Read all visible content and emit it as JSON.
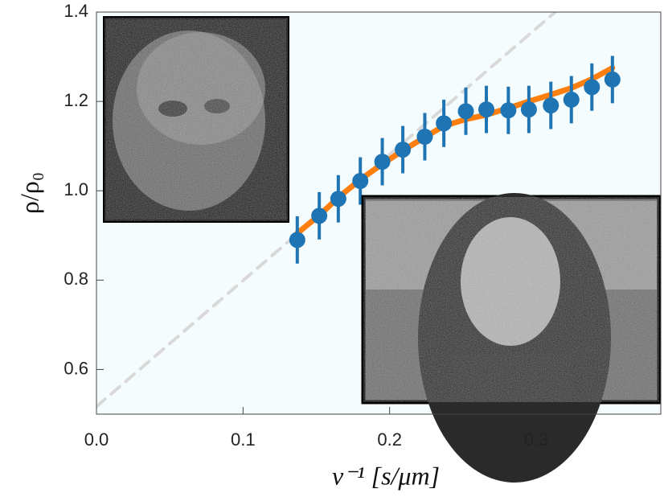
{
  "chart_data": {
    "type": "scatter",
    "xlabel": "v⁻¹ [s/μm]",
    "ylabel": "ρ/ρ₀",
    "xlim": [
      0,
      0.385
    ],
    "ylim": [
      0.5,
      1.4
    ],
    "xticks": [
      {
        "value": 0,
        "label": "0.0"
      },
      0.1,
      0.2,
      0.3
    ],
    "yticks": [
      0.6,
      0.8,
      {
        "value": 1,
        "label": "1.0"
      },
      1.2,
      1.4
    ],
    "series": [
      {
        "mode": "line",
        "dash": true,
        "color": "#d9d9d9",
        "x": [
          0,
          0.313
        ],
        "values": [
          0.517,
          1.4
        ]
      },
      {
        "mode": "line",
        "dash": false,
        "color": "#ff7f0e",
        "x": [
          0.137,
          0.152,
          0.165,
          0.18,
          0.195,
          0.209,
          0.224,
          0.237,
          0.252,
          0.266,
          0.281,
          0.295,
          0.31,
          0.324,
          0.338,
          0.352
        ],
        "values": [
          0.905,
          0.945,
          0.985,
          1.025,
          1.06,
          1.09,
          1.12,
          1.145,
          1.16,
          1.17,
          1.185,
          1.2,
          1.215,
          1.23,
          1.25,
          1.275
        ]
      },
      {
        "mode": "markers",
        "color": "#1f74b4",
        "x": [
          0.137,
          0.152,
          0.165,
          0.18,
          0.195,
          0.209,
          0.224,
          0.237,
          0.252,
          0.266,
          0.281,
          0.295,
          0.31,
          0.324,
          0.338,
          0.352
        ],
        "values": [
          0.89,
          0.944,
          0.982,
          1.022,
          1.065,
          1.092,
          1.121,
          1.151,
          1.178,
          1.182,
          1.18,
          1.182,
          1.191,
          1.204,
          1.232,
          1.249
        ],
        "errors": [
          0.053,
          0.053,
          0.053,
          0.053,
          0.053,
          0.053,
          0.053,
          0.053,
          0.053,
          0.053,
          0.053,
          0.053,
          0.053,
          0.053,
          0.053,
          0.053
        ]
      }
    ]
  }
}
